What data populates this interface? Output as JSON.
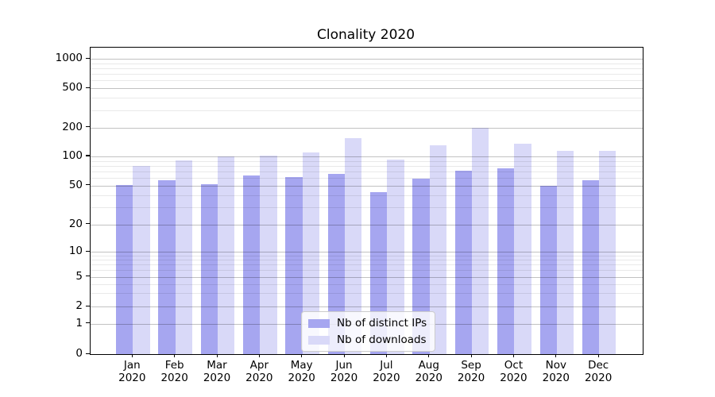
{
  "chart_data": {
    "type": "bar",
    "title": "Clonality 2020",
    "months": [
      "Jan",
      "Feb",
      "Mar",
      "Apr",
      "May",
      "Jun",
      "Jul",
      "Aug",
      "Sep",
      "Oct",
      "Nov",
      "Dec"
    ],
    "year": "2020",
    "series": [
      {
        "name": "Nb of distinct IPs",
        "color": "#a6a6f0",
        "values": [
          51,
          57,
          52,
          64,
          61,
          66,
          43,
          59,
          71,
          75,
          50,
          57
        ]
      },
      {
        "name": "Nb of downloads",
        "color": "#d9d9f8",
        "values": [
          80,
          91,
          100,
          101,
          110,
          155,
          92,
          130,
          200,
          135,
          113,
          114
        ]
      }
    ],
    "y_axis": {
      "scale": "symlog",
      "tick_labels": [
        "0",
        "1",
        "2",
        "5",
        "10",
        "20",
        "50",
        "100",
        "200",
        "500",
        "1000"
      ]
    },
    "legend_position": "lower center",
    "grid": "both"
  },
  "colors": {
    "bar_distinct_ips": "#a6a6f0",
    "bar_downloads": "#d9d9f8",
    "grid_major": "#c2c2c2",
    "grid_minor": "#e9e9e9",
    "spine": "#000000",
    "background": "#ffffff"
  }
}
